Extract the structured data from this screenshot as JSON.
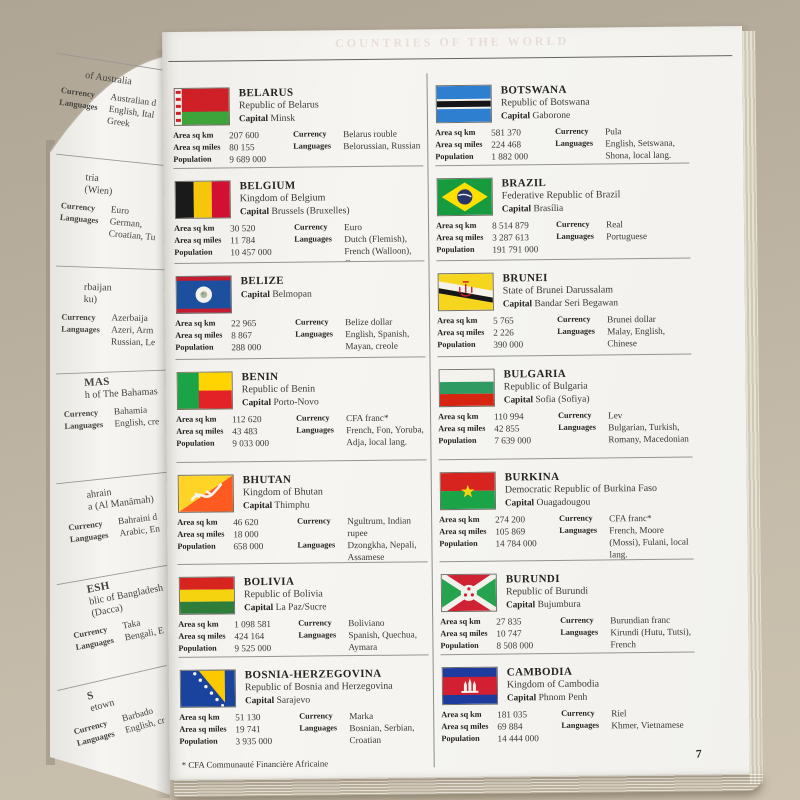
{
  "page": {
    "ghost_header": "COUNTRIES OF THE WORLD",
    "footnote": "* CFA Communauté Financière Africaine",
    "number": "7"
  },
  "labels": {
    "capital": "Capital",
    "area_km": "Area sq km",
    "area_miles": "Area sq miles",
    "population": "Population",
    "currency": "Currency",
    "languages": "Languages"
  },
  "left_page": {
    "groups": [
      {
        "subs": [
          "of Australia"
        ],
        "values": [
          "Australian d",
          "English, Ital",
          "Greek"
        ]
      },
      {
        "subs": [
          "tria",
          "(Wien)"
        ],
        "values": [
          "Euro",
          "German,",
          "Croatian, Tu"
        ]
      },
      {
        "subs": [
          "rbaijan",
          "ku)"
        ],
        "values": [
          "Azerbaija",
          "Azeri, Arm",
          "Russian, Le"
        ]
      },
      {
        "subs": [
          "MAS",
          "h of The Bahamas"
        ],
        "values": [
          "Bahamia",
          "English, cre"
        ]
      },
      {
        "subs": [
          "ahrain",
          "a (Al Manāmah)"
        ],
        "values": [
          "Bahraini d",
          "Arabic, En"
        ]
      },
      {
        "subs": [
          "ESH",
          "blic of Bangladesh",
          "(Dacca)"
        ],
        "values": [
          "Taka",
          "Bengali, E"
        ]
      },
      {
        "subs": [
          "S",
          "etown"
        ],
        "values": [
          "Barbado",
          "English, cr"
        ]
      }
    ]
  },
  "columns": [
    {
      "entries": [
        {
          "flag": "belarus",
          "name": "BELARUS",
          "long_name": "Republic of Belarus",
          "capital": "Minsk",
          "area_km": "207 600",
          "area_miles": "80 155",
          "population": "9 689 000",
          "currency": "Belarus rouble",
          "languages": "Belorussian, Russian"
        },
        {
          "flag": "belgium",
          "name": "BELGIUM",
          "long_name": "Kingdom of Belgium",
          "capital": "Brussels (Bruxelles)",
          "area_km": "30 520",
          "area_miles": "11 784",
          "population": "10 457 000",
          "currency": "Euro",
          "languages": "Dutch (Flemish), French (Walloon), German"
        },
        {
          "flag": "belize",
          "name": "BELIZE",
          "long_name": "",
          "capital": "Belmopan",
          "area_km": "22 965",
          "area_miles": "8 867",
          "population": "288 000",
          "currency": "Belize dollar",
          "languages": "English, Spanish, Mayan, creole"
        },
        {
          "flag": "benin",
          "name": "BENIN",
          "long_name": "Republic of Benin",
          "capital": "Porto-Novo",
          "area_km": "112 620",
          "area_miles": "43 483",
          "population": "9 033 000",
          "currency": "CFA franc*",
          "languages": "French, Fon, Yoruba, Adja, local lang."
        },
        {
          "flag": "bhutan",
          "name": "BHUTAN",
          "long_name": "Kingdom of Bhutan",
          "capital": "Thimphu",
          "area_km": "46 620",
          "area_miles": "18 000",
          "population": "658 000",
          "currency": "Ngultrum, Indian rupee",
          "languages": "Dzongkha, Nepali, Assamese"
        },
        {
          "flag": "bolivia",
          "name": "BOLIVIA",
          "long_name": "Republic of Bolivia",
          "capital": "La Paz/Sucre",
          "area_km": "1 098 581",
          "area_miles": "424 164",
          "population": "9 525 000",
          "currency": "Boliviano",
          "languages": "Spanish, Quechua, Aymara"
        },
        {
          "flag": "bosnia",
          "name": "BOSNIA-HERZEGOVINA",
          "long_name": "Republic of Bosnia and Herzegovina",
          "capital": "Sarajevo",
          "area_km": "51 130",
          "area_miles": "19 741",
          "population": "3 935 000",
          "currency": "Marka",
          "languages": "Bosnian, Serbian, Croatian"
        }
      ]
    },
    {
      "entries": [
        {
          "flag": "botswana",
          "name": "BOTSWANA",
          "long_name": "Republic of Botswana",
          "capital": "Gaborone",
          "area_km": "581 370",
          "area_miles": "224 468",
          "population": "1 882 000",
          "currency": "Pula",
          "languages": "English, Setswana, Shona, local lang."
        },
        {
          "flag": "brazil",
          "name": "BRAZIL",
          "long_name": "Federative Republic of Brazil",
          "capital": "Brasília",
          "area_km": "8 514 879",
          "area_miles": "3 287 613",
          "population": "191 791 000",
          "currency": "Real",
          "languages": "Portuguese"
        },
        {
          "flag": "brunei",
          "name": "BRUNEI",
          "long_name": "State of Brunei Darussalam",
          "capital": "Bandar Seri Begawan",
          "area_km": "5 765",
          "area_miles": "2 226",
          "population": "390 000",
          "currency": "Brunei dollar",
          "languages": "Malay, English, Chinese"
        },
        {
          "flag": "bulgaria",
          "name": "BULGARIA",
          "long_name": "Republic of Bulgaria",
          "capital": "Sofia (Sofiya)",
          "area_km": "110 994",
          "area_miles": "42 855",
          "population": "7 639 000",
          "currency": "Lev",
          "languages": "Bulgarian, Turkish, Romany, Macedonian"
        },
        {
          "flag": "burkina",
          "name": "BURKINA",
          "long_name": "Democratic Republic of Burkina Faso",
          "capital": "Ouagadougou",
          "area_km": "274 200",
          "area_miles": "105 869",
          "population": "14 784 000",
          "currency": "CFA franc*",
          "languages": "French, Moore (Mossi), Fulani, local lang."
        },
        {
          "flag": "burundi",
          "name": "BURUNDI",
          "long_name": "Republic of Burundi",
          "capital": "Bujumbura",
          "area_km": "27 835",
          "area_miles": "10 747",
          "population": "8 508 000",
          "currency": "Burundian franc",
          "languages": "Kirundi (Hutu, Tutsi), French"
        },
        {
          "flag": "cambodia",
          "name": "CAMBODIA",
          "long_name": "Kingdom of Cambodia",
          "capital": "Phnom Penh",
          "area_km": "181 035",
          "area_miles": "69 884",
          "population": "14 444 000",
          "currency": "Riel",
          "languages": "Khmer, Vietnamese"
        }
      ]
    }
  ]
}
